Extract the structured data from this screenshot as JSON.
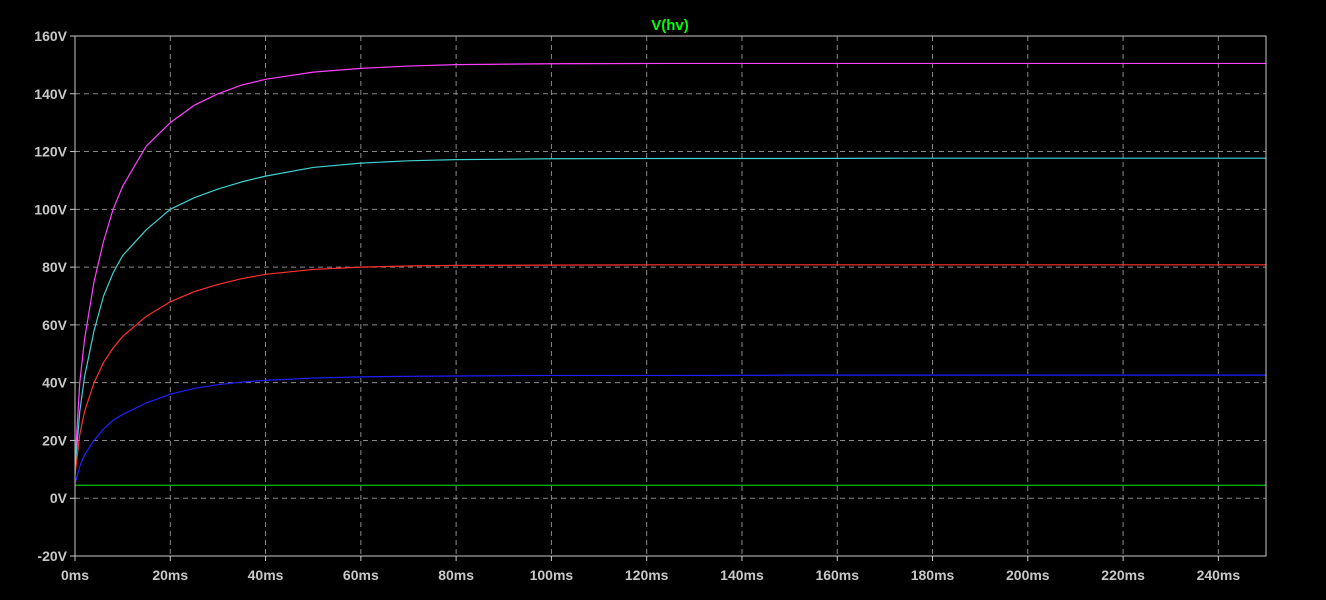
{
  "chart_data": {
    "type": "line",
    "title": "V(hv)",
    "title_color": "#00ff00",
    "background": "#000000",
    "grid": true,
    "xlim": [
      0,
      250
    ],
    "ylim": [
      -20,
      160
    ],
    "x_ticks": [
      {
        "value": 0,
        "label": "0ms"
      },
      {
        "value": 20,
        "label": "20ms"
      },
      {
        "value": 40,
        "label": "40ms"
      },
      {
        "value": 60,
        "label": "60ms"
      },
      {
        "value": 80,
        "label": "80ms"
      },
      {
        "value": 100,
        "label": "100ms"
      },
      {
        "value": 120,
        "label": "120ms"
      },
      {
        "value": 140,
        "label": "140ms"
      },
      {
        "value": 160,
        "label": "160ms"
      },
      {
        "value": 180,
        "label": "180ms"
      },
      {
        "value": 200,
        "label": "200ms"
      },
      {
        "value": 220,
        "label": "220ms"
      },
      {
        "value": 240,
        "label": "240ms"
      }
    ],
    "y_ticks": [
      {
        "value": -20,
        "label": "-20V"
      },
      {
        "value": 0,
        "label": "0V"
      },
      {
        "value": 20,
        "label": "20V"
      },
      {
        "value": 40,
        "label": "40V"
      },
      {
        "value": 60,
        "label": "60V"
      },
      {
        "value": 80,
        "label": "80V"
      },
      {
        "value": 100,
        "label": "100V"
      },
      {
        "value": 120,
        "label": "120V"
      },
      {
        "value": 140,
        "label": "140V"
      },
      {
        "value": 160,
        "label": "160V"
      }
    ],
    "series": [
      {
        "color": "#ff40ff",
        "x": [
          0,
          1,
          2,
          4,
          6,
          8,
          10,
          15,
          20,
          25,
          30,
          35,
          40,
          50,
          60,
          70,
          80,
          100,
          125,
          150,
          175,
          200,
          225,
          250
        ],
        "y": [
          12,
          40,
          55,
          75,
          89,
          100,
          108,
          122,
          130,
          136,
          140,
          143,
          145,
          147.5,
          148.8,
          149.6,
          150.1,
          150.4,
          150.5,
          150.5,
          150.5,
          150.5,
          150.5,
          150.5
        ]
      },
      {
        "color": "#40d0d0",
        "x": [
          0,
          1,
          2,
          4,
          6,
          8,
          10,
          15,
          20,
          25,
          30,
          35,
          40,
          50,
          60,
          70,
          80,
          100,
          125,
          150,
          175,
          200,
          225,
          250
        ],
        "y": [
          10,
          30,
          42,
          58,
          70,
          78,
          84,
          93,
          100,
          104,
          107,
          109.5,
          111.5,
          114.5,
          116,
          116.8,
          117.2,
          117.5,
          117.6,
          117.6,
          117.7,
          117.7,
          117.7,
          117.7
        ]
      },
      {
        "color": "#ff3030",
        "x": [
          0,
          1,
          2,
          4,
          6,
          8,
          10,
          15,
          20,
          25,
          30,
          35,
          40,
          50,
          60,
          70,
          80,
          100,
          125,
          150,
          175,
          200,
          225,
          250
        ],
        "y": [
          8,
          22,
          30,
          40,
          47,
          52,
          56,
          63,
          68,
          71.5,
          74,
          76,
          77.5,
          79.2,
          80,
          80.4,
          80.6,
          80.7,
          80.8,
          80.8,
          80.8,
          80.8,
          80.8,
          80.8
        ]
      },
      {
        "color": "#2020ff",
        "x": [
          0,
          1,
          2,
          4,
          6,
          8,
          10,
          15,
          20,
          25,
          30,
          35,
          40,
          50,
          60,
          70,
          80,
          100,
          125,
          150,
          175,
          200,
          225,
          250
        ],
        "y": [
          5,
          11,
          15,
          20,
          24,
          27,
          29,
          33,
          36,
          38,
          39.3,
          40.2,
          40.8,
          41.6,
          42,
          42.2,
          42.3,
          42.5,
          42.5,
          42.6,
          42.6,
          42.6,
          42.6,
          42.6
        ]
      },
      {
        "color": "#00c000",
        "x": [
          0,
          250
        ],
        "y": [
          4.5,
          4.5
        ]
      }
    ]
  }
}
